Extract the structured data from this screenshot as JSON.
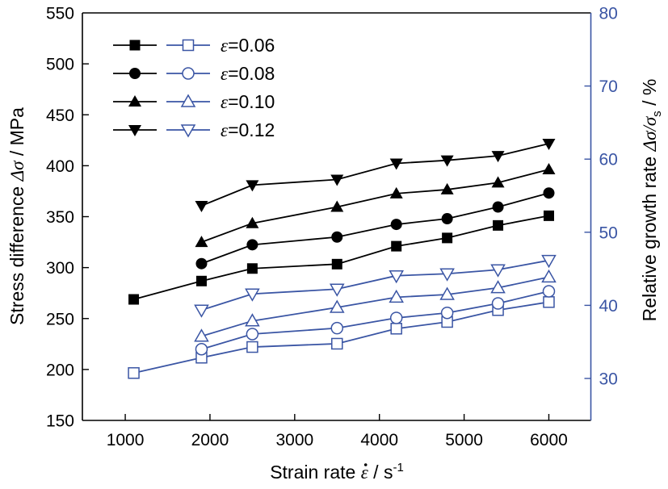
{
  "chart_data": {
    "type": "line",
    "title": "",
    "xlabel": {
      "text": "Strain rate ",
      "symbol": "ε",
      "unit": " / s",
      "unit_sup": "-1"
    },
    "ylabel_left": {
      "text": "Stress difference ",
      "symbol": "Δσ",
      "unit": " / MPa"
    },
    "ylabel_right": {
      "text": "Relative growth rate ",
      "symbol": "Δσ/σ",
      "symbol_sub": "s",
      "unit": " / %"
    },
    "xlim": [
      494,
      6496
    ],
    "ylim_left": [
      150,
      550
    ],
    "ylim_right": [
      24.26,
      80
    ],
    "xticks": [
      1000,
      2000,
      3000,
      4000,
      5000,
      6000
    ],
    "xtick_labels": [
      "1000",
      "2000",
      "3000",
      "4000",
      "5000",
      "6000"
    ],
    "yticks_left": [
      150,
      200,
      250,
      300,
      350,
      400,
      450,
      500,
      550
    ],
    "ytick_labels_left": [
      "150",
      "200",
      "250",
      "300",
      "350",
      "400",
      "450",
      "500",
      "550"
    ],
    "yticks_right": [
      30,
      40,
      50,
      60,
      70,
      80
    ],
    "ytick_labels_right": [
      "30",
      "40",
      "50",
      "60",
      "70",
      "80"
    ],
    "grid": false,
    "legend_position": "top-left",
    "colors": {
      "stress": "#000000",
      "growth": "#3a55a4",
      "axis_left": "#000000",
      "axis_right": "#3a55a4"
    },
    "legend": [
      {
        "label_symbol": "ε",
        "label_value": "=0.06",
        "marker": "square"
      },
      {
        "label_symbol": "ε",
        "label_value": "=0.08",
        "marker": "circle"
      },
      {
        "label_symbol": "ε",
        "label_value": "=0.10",
        "marker": "triangle-up"
      },
      {
        "label_symbol": "ε",
        "label_value": "=0.12",
        "marker": "triangle-down"
      }
    ],
    "series": [
      {
        "name": "Δσ ε=0.06",
        "axis": "left",
        "style": "filled",
        "marker": "square",
        "x": [
          1100,
          1900,
          2500,
          3500,
          4200,
          4800,
          5400,
          6000
        ],
        "y": [
          268.8,
          286.8,
          299.1,
          303.4,
          321.0,
          329.1,
          341.4,
          350.9
        ]
      },
      {
        "name": "Δσ ε=0.08",
        "axis": "left",
        "style": "filled",
        "marker": "circle",
        "x": [
          1900,
          2500,
          3500,
          4200,
          4800,
          5400,
          6000
        ],
        "y": [
          303.9,
          322.4,
          330.0,
          342.4,
          348.0,
          359.5,
          373.2
        ]
      },
      {
        "name": "Δσ ε=0.10",
        "axis": "left",
        "style": "filled",
        "marker": "triangle-up",
        "x": [
          1900,
          2500,
          3500,
          4200,
          4800,
          5400,
          6000
        ],
        "y": [
          325.0,
          343.5,
          359.5,
          372.7,
          376.6,
          383.4,
          396.3
        ]
      },
      {
        "name": "Δσ ε=0.12",
        "axis": "left",
        "style": "filled",
        "marker": "triangle-down",
        "x": [
          1900,
          2500,
          3500,
          4200,
          4800,
          5400,
          6000
        ],
        "y": [
          360.7,
          381.0,
          386.4,
          402.3,
          405.3,
          409.7,
          421.7
        ]
      },
      {
        "name": "Δσ/σs ε=0.06",
        "axis": "right",
        "style": "open",
        "marker": "square",
        "x": [
          1100,
          1900,
          2500,
          3500,
          4200,
          4800,
          5400,
          6000
        ],
        "y": [
          30.74,
          32.84,
          34.3,
          34.75,
          36.81,
          37.73,
          39.35,
          40.45
        ]
      },
      {
        "name": "Δσ/σs ε=0.08",
        "axis": "right",
        "style": "open",
        "marker": "circle",
        "x": [
          1900,
          2500,
          3500,
          4200,
          4800,
          5400,
          6000
        ],
        "y": [
          34.0,
          36.07,
          36.88,
          38.28,
          38.97,
          40.26,
          41.92
        ]
      },
      {
        "name": "Δσ/σs ε=0.10",
        "axis": "right",
        "style": "open",
        "marker": "triangle-up",
        "x": [
          1900,
          2500,
          3500,
          4200,
          4800,
          5400,
          6000
        ],
        "y": [
          35.77,
          37.87,
          39.71,
          41.11,
          41.48,
          42.4,
          43.87
        ]
      },
      {
        "name": "Δσ/σs ε=0.12",
        "axis": "right",
        "style": "open",
        "marker": "triangle-down",
        "x": [
          1900,
          2500,
          3500,
          4200,
          4800,
          5400,
          6000
        ],
        "y": [
          39.35,
          41.56,
          42.22,
          44.05,
          44.32,
          44.87,
          46.15
        ]
      }
    ]
  }
}
